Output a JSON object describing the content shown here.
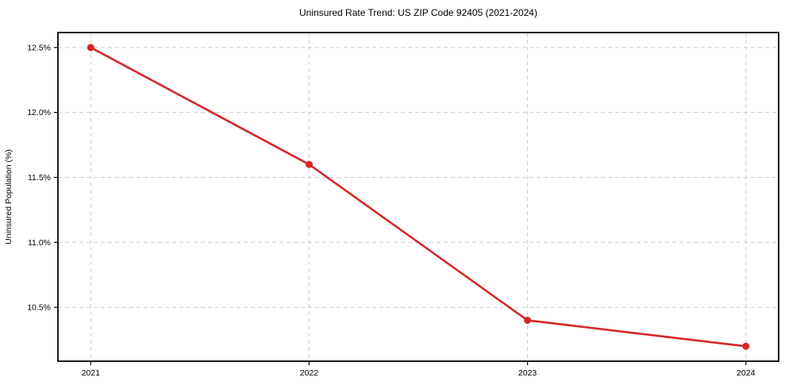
{
  "chart_data": {
    "type": "line",
    "title": "Uninsured Rate Trend: US ZIP Code 92405 (2021-2024)",
    "xlabel": "",
    "ylabel": "Uninsured Population (%)",
    "x": [
      2021,
      2022,
      2023,
      2024
    ],
    "values": [
      12.5,
      11.6,
      10.4,
      10.2
    ],
    "xlim": [
      2020.85,
      2024.15
    ],
    "ylim": [
      10.085,
      12.615
    ],
    "xticks": {
      "values": [
        2021,
        2022,
        2023,
        2024
      ],
      "labels": [
        "2021",
        "2022",
        "2023",
        "2024"
      ]
    },
    "yticks": {
      "values": [
        10.5,
        11.0,
        11.5,
        12.0,
        12.5
      ],
      "labels": [
        "10.5%",
        "11.0%",
        "11.5%",
        "12.0%",
        "12.5%"
      ]
    },
    "grid": true,
    "grid_style": "dashed",
    "legend": false,
    "line_color": "#d62728",
    "marker_color": "#d62728",
    "grid_color": "#cccccc",
    "axis_color": "#000000",
    "text_color": "#000000",
    "background_color": "#ffffff"
  }
}
